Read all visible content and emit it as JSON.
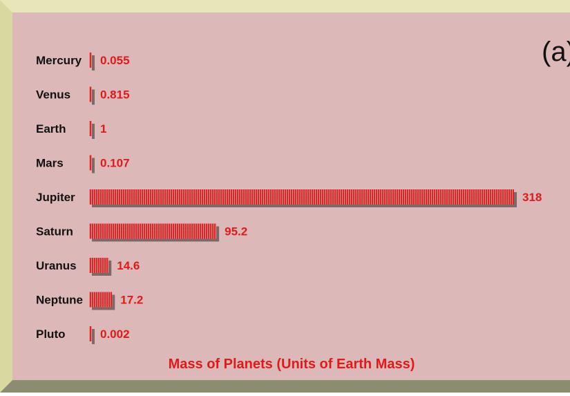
{
  "chart_data": {
    "type": "bar",
    "orientation": "horizontal",
    "panel_label": "(a)",
    "title": "Mass of Planets (Units of Earth Mass)",
    "xlabel": "",
    "ylabel": "",
    "categories": [
      "Mercury",
      "Venus",
      "Earth",
      "Mars",
      "Jupiter",
      "Saturn",
      "Uranus",
      "Neptune",
      "Pluto"
    ],
    "values": [
      0.055,
      0.815,
      1,
      0.107,
      318,
      95.2,
      14.6,
      17.2,
      0.002
    ],
    "value_labels": [
      "0.055",
      "0.815",
      "1",
      "0.107",
      "318",
      "95.2",
      "14.6",
      "17.2",
      "0.002"
    ],
    "xlim": [
      0,
      318
    ],
    "grid": false,
    "legend": "none",
    "colors": {
      "bar": "#d42a2a",
      "bar_stripe": "#f08a8a",
      "bar_shadow": "#7a6a6a",
      "value_text": "#e01a1a",
      "category_text": "#111111",
      "panel_background": "#dcb8b8",
      "frame": "#c8c890"
    }
  }
}
